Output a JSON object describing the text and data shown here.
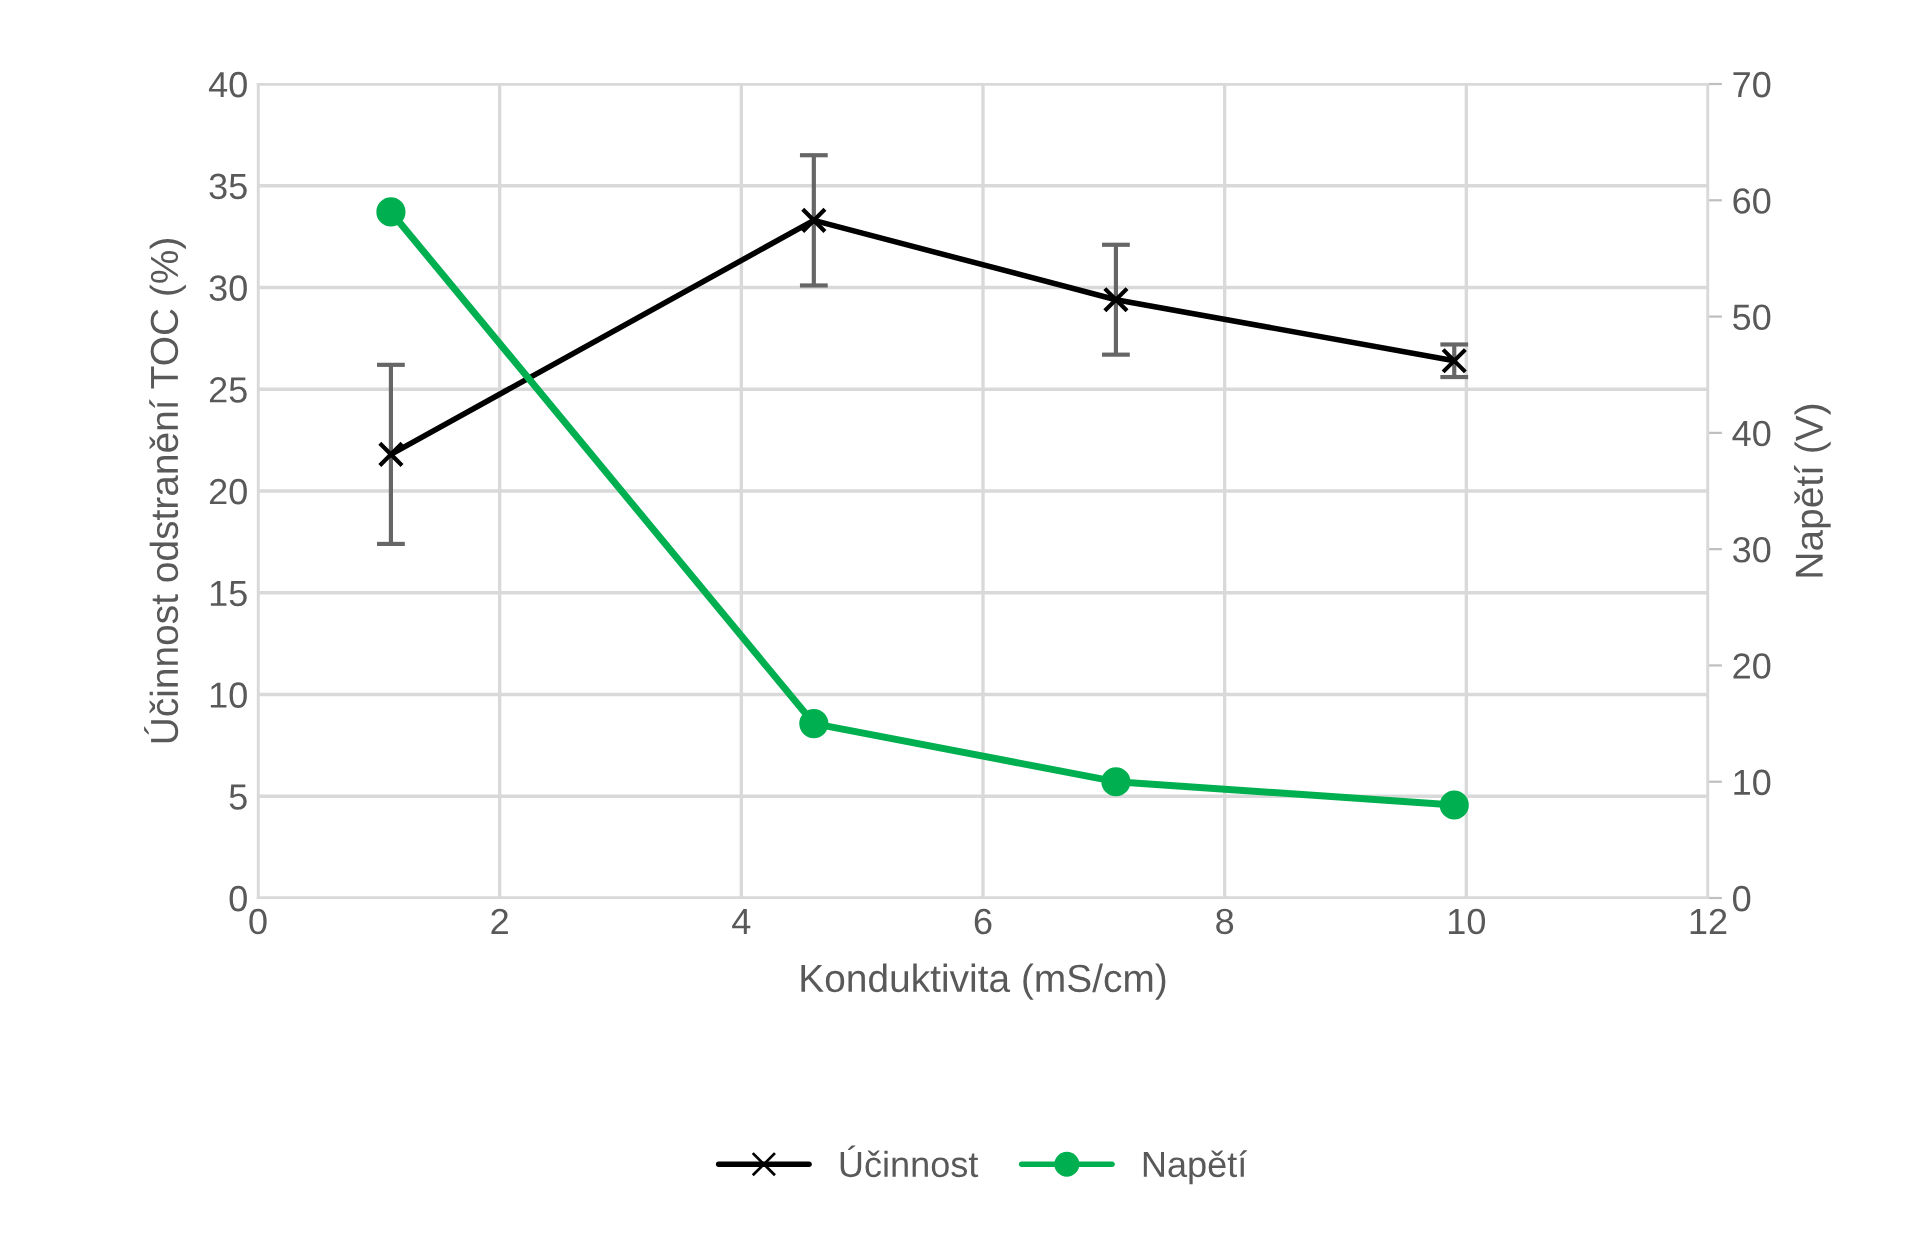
{
  "chart_data": {
    "type": "line",
    "xlabel": "Konduktivita (mS/cm)",
    "ylabel": "Účinnost odstranění TOC (%)",
    "y2label": "Napětí (V)",
    "x": [
      1.1,
      4.6,
      7.1,
      9.9
    ],
    "series": [
      {
        "name": "Účinnost",
        "color": "#000000",
        "values": [
          21.8,
          33.3,
          29.4,
          26.4
        ],
        "errors": [
          4.4,
          3.2,
          2.7,
          0.8
        ],
        "marker": "cross"
      },
      {
        "name": "Napětí",
        "color": "#00b050",
        "values": [
          59,
          15,
          10,
          8
        ],
        "axis": "y2",
        "marker": "circle"
      }
    ],
    "xlim": [
      0,
      12
    ],
    "xticks": [
      0,
      2,
      4,
      6,
      8,
      10,
      12
    ],
    "ylim": [
      0,
      40
    ],
    "yticks": [
      0,
      5,
      10,
      15,
      20,
      25,
      30,
      35,
      40
    ],
    "y2lim": [
      0,
      70
    ],
    "y2ticks": [
      0,
      10,
      20,
      30,
      40,
      50,
      60,
      70
    ],
    "grid": true,
    "legend": "bottom",
    "line_style": "solid"
  }
}
